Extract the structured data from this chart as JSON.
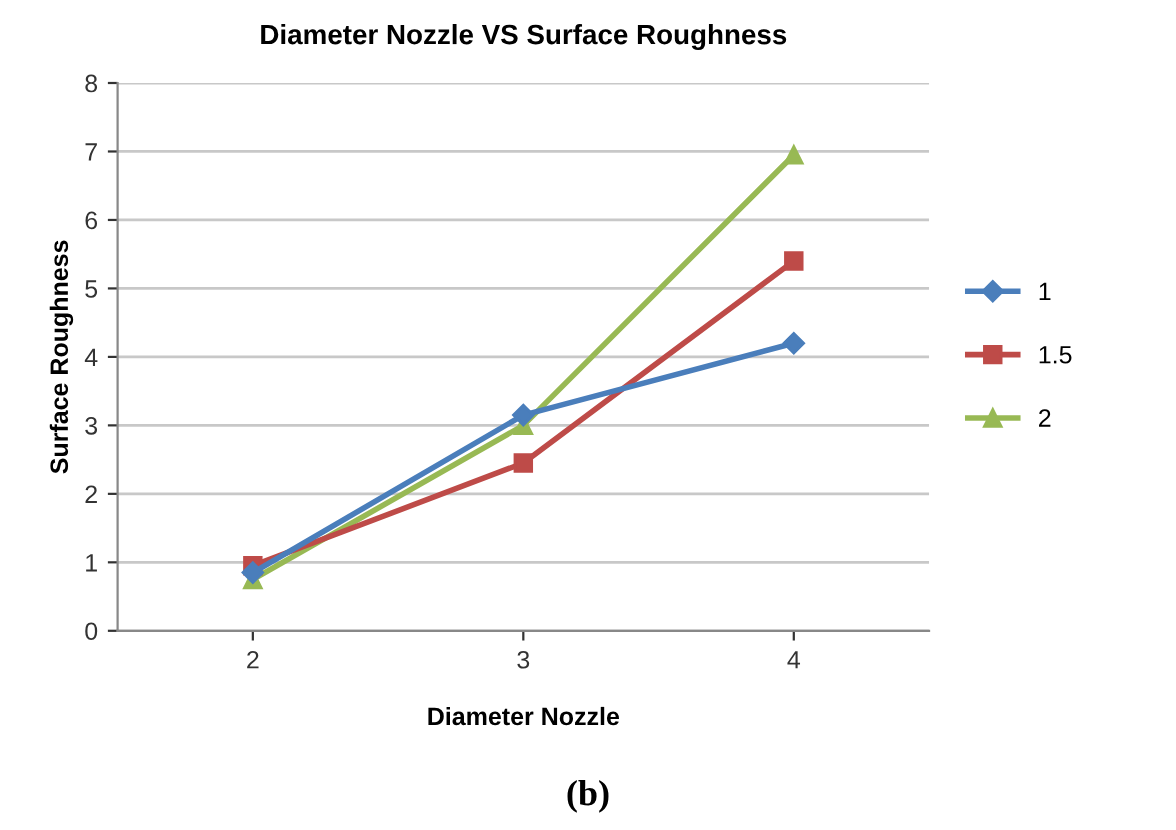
{
  "chart_data": {
    "type": "line",
    "title": "Diameter Nozzle VS Surface Roughness",
    "xlabel": "Diameter Nozzle",
    "ylabel": "Surface Roughness",
    "categories": [
      "2",
      "3",
      "4"
    ],
    "series": [
      {
        "name": "1",
        "color": "#4a7ebb",
        "values": [
          0.85,
          3.15,
          4.2
        ],
        "marker": "diamond"
      },
      {
        "name": "1.5",
        "color": "#be4b48",
        "values": [
          0.95,
          2.45,
          5.4
        ],
        "marker": "square"
      },
      {
        "name": "2",
        "color": "#98b954",
        "values": [
          0.75,
          3.0,
          6.95
        ],
        "marker": "triangle"
      }
    ],
    "ylim": [
      0,
      8
    ],
    "yticks": [
      0,
      1,
      2,
      3,
      4,
      5,
      6,
      7,
      8
    ],
    "grid": "y",
    "legend": "right",
    "annotations": [
      "(b)"
    ]
  }
}
